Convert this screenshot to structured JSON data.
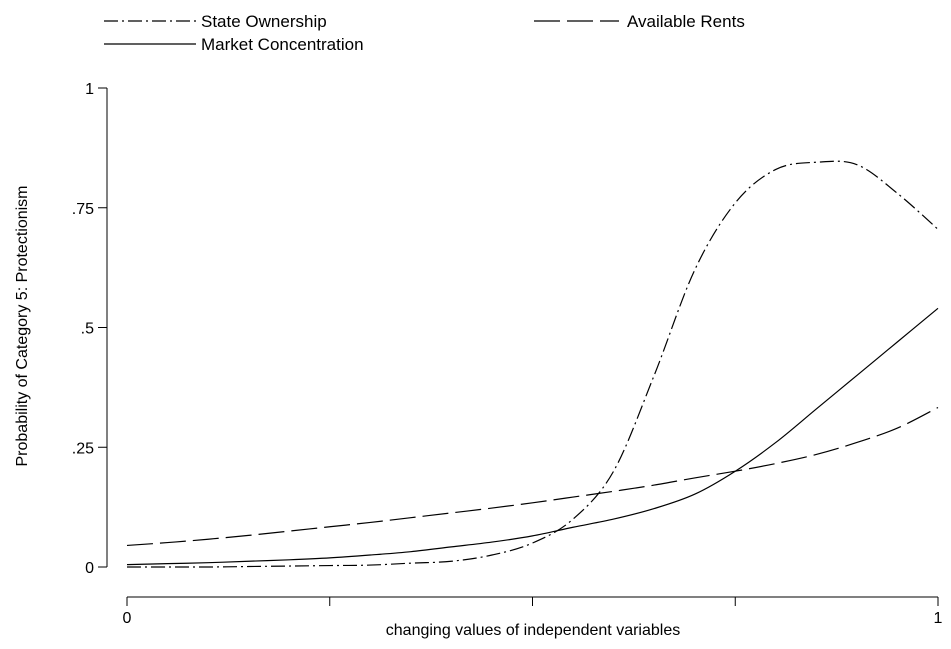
{
  "chart_data": {
    "type": "line",
    "title": "",
    "xlabel": "changing values of independent variables",
    "ylabel": "Probability of Category 5: Protectionism",
    "xlim": [
      0,
      1
    ],
    "ylim": [
      0,
      1
    ],
    "x_ticks": [
      0,
      0.25,
      0.5,
      0.75,
      1
    ],
    "x_tick_labels": [
      "0",
      "",
      "",
      "",
      "1"
    ],
    "y_ticks": [
      0,
      0.25,
      0.5,
      0.75,
      1
    ],
    "y_tick_labels": [
      "0",
      ".25",
      ".5",
      ".75",
      "1"
    ],
    "grid": false,
    "legend_position": "top",
    "x": [
      0,
      0.05,
      0.1,
      0.15,
      0.2,
      0.25,
      0.3,
      0.35,
      0.4,
      0.45,
      0.5,
      0.55,
      0.6,
      0.65,
      0.7,
      0.75,
      0.8,
      0.85,
      0.9,
      0.95,
      1
    ],
    "series": [
      {
        "name": "State Ownership",
        "style": "dash-dot",
        "values": [
          0.0,
          0.0,
          0.0,
          0.001,
          0.002,
          0.003,
          0.004,
          0.008,
          0.012,
          0.025,
          0.05,
          0.1,
          0.2,
          0.4,
          0.62,
          0.76,
          0.83,
          0.845,
          0.84,
          0.78,
          0.705
        ]
      },
      {
        "name": "Available Rents",
        "style": "long-dash",
        "values": [
          0.045,
          0.051,
          0.058,
          0.066,
          0.075,
          0.084,
          0.093,
          0.103,
          0.113,
          0.123,
          0.134,
          0.146,
          0.158,
          0.171,
          0.186,
          0.2,
          0.216,
          0.235,
          0.26,
          0.29,
          0.333
        ]
      },
      {
        "name": "Market Concentration",
        "style": "solid",
        "values": [
          0.005,
          0.007,
          0.009,
          0.012,
          0.015,
          0.019,
          0.025,
          0.032,
          0.042,
          0.052,
          0.065,
          0.083,
          0.1,
          0.122,
          0.152,
          0.2,
          0.26,
          0.33,
          0.4,
          0.47,
          0.54
        ]
      }
    ]
  }
}
